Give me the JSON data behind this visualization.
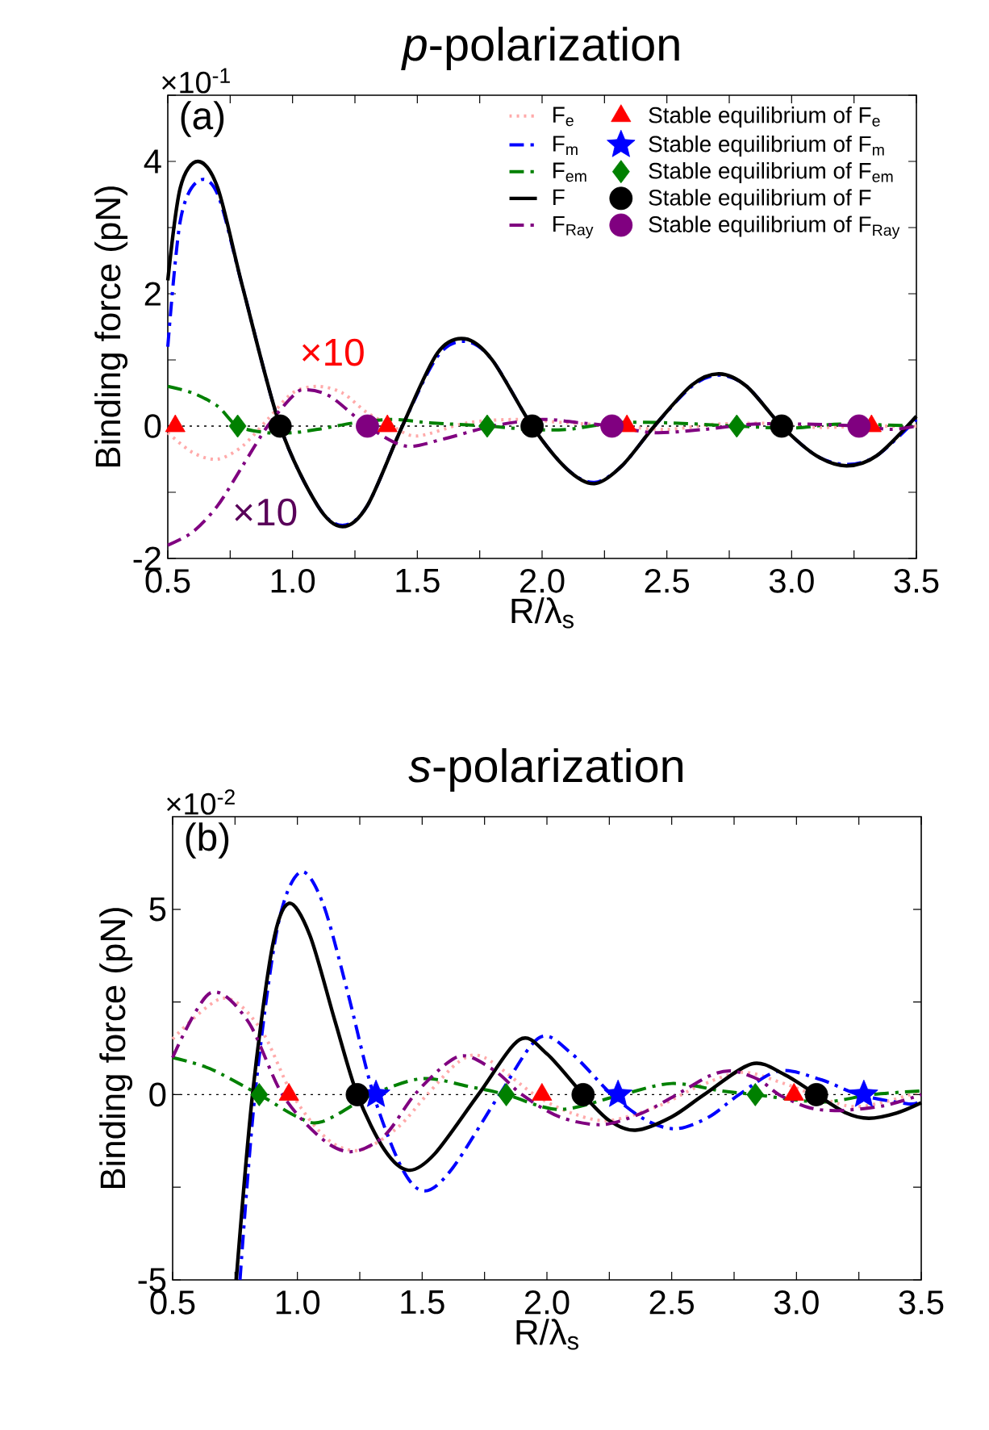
{
  "chart_data": [
    {
      "type": "line",
      "title": "*p*-polarization",
      "xlabel": "R/λ$_{s}$",
      "ylabel": "Binding force (pN)",
      "annotations": [
        "(a)",
        "×10$^{-1}$",
        "×10",
        "×10"
      ],
      "xlim": [
        0.5,
        3.5
      ],
      "ylim": [
        -2,
        5
      ],
      "xticks": [
        0.5,
        {
          "value": 0.75,
          "label": null
        },
        {
          "value": 1,
          "label": "1.0"
        },
        {
          "value": 1.25,
          "label": null
        },
        1.5,
        {
          "value": 1.75,
          "label": null
        },
        {
          "value": 2,
          "label": "2.0"
        },
        {
          "value": 2.25,
          "label": null
        },
        2.5,
        {
          "value": 2.75,
          "label": null
        },
        {
          "value": 3,
          "label": "3.0"
        },
        {
          "value": 3.25,
          "label": null
        },
        3.5
      ],
      "yticks": [
        -2,
        {
          "value": -1,
          "label": null
        },
        0,
        {
          "value": 1,
          "label": null
        },
        2,
        {
          "value": 3,
          "label": null
        },
        4,
        {
          "value": 5,
          "label": null
        }
      ],
      "legend": "top right",
      "ref_lines": [
        {
          "axis": "y",
          "value": 0,
          "color": "#000000",
          "line_style": "dotted"
        }
      ],
      "series": [
        {
          "name": "F$_{e}$",
          "color": "#ffaaaa",
          "line_style": "dotted",
          "x": [
            0.5,
            0.6,
            0.7,
            0.8,
            0.9,
            1.0,
            1.1,
            1.2,
            1.3,
            1.4,
            1.5,
            1.7,
            1.9,
            2.1,
            2.3,
            2.5,
            2.7,
            2.9,
            3.1,
            3.3,
            3.5
          ],
          "values": [
            -0.1,
            -0.4,
            -0.5,
            -0.3,
            0.1,
            0.5,
            0.6,
            0.5,
            0.2,
            0,
            -0.15,
            0.05,
            0.1,
            0.05,
            0,
            -0.05,
            0.03,
            0.04,
            -0.02,
            0,
            0
          ]
        },
        {
          "name": "F$_{m}$",
          "color": "#0000ff",
          "line_style": "dashed",
          "x": [
            0.5,
            0.55,
            0.62,
            0.7,
            0.8,
            0.95,
            1.1,
            1.2,
            1.3,
            1.44,
            1.58,
            1.69,
            1.8,
            1.96,
            2.1,
            2.21,
            2.32,
            2.45,
            2.6,
            2.71,
            2.82,
            2.96,
            3.1,
            3.22,
            3.34,
            3.5
          ],
          "values": [
            1.2,
            3.1,
            3.7,
            3.5,
            2.1,
            0,
            -1.2,
            -1.5,
            -1.2,
            0,
            1.05,
            1.28,
            1.0,
            0,
            -0.65,
            -0.85,
            -0.6,
            0,
            0.6,
            0.77,
            0.6,
            0,
            -0.45,
            -0.58,
            -0.45,
            0.1
          ]
        },
        {
          "name": "F$_{em}$",
          "color": "#008000",
          "line_style": "dashed",
          "x": [
            0.5,
            0.6,
            0.7,
            0.78,
            0.9,
            1.0,
            1.1,
            1.25,
            1.4,
            1.55,
            1.78,
            1.95,
            2.1,
            2.3,
            2.5,
            2.78,
            3.0,
            3.2,
            3.5
          ],
          "values": [
            0.6,
            0.5,
            0.3,
            0,
            -0.1,
            -0.1,
            -0.05,
            0.05,
            0.1,
            0.05,
            0,
            -0.05,
            -0.05,
            0.05,
            0.05,
            0,
            -0.03,
            0.03,
            0
          ]
        },
        {
          "name": "F",
          "color": "#000000",
          "line_style": "solid",
          "x": [
            0.5,
            0.55,
            0.62,
            0.7,
            0.8,
            0.95,
            1.1,
            1.2,
            1.3,
            1.44,
            1.58,
            1.69,
            1.8,
            1.96,
            2.1,
            2.21,
            2.32,
            2.45,
            2.6,
            2.71,
            2.82,
            2.96,
            3.1,
            3.22,
            3.34,
            3.5
          ],
          "values": [
            2.2,
            3.6,
            4.0,
            3.6,
            2.1,
            0,
            -1.2,
            -1.52,
            -1.2,
            0,
            1.1,
            1.32,
            1.0,
            0,
            -0.65,
            -0.87,
            -0.6,
            0,
            0.62,
            0.79,
            0.6,
            0,
            -0.45,
            -0.6,
            -0.45,
            0.15
          ]
        },
        {
          "name": "F$_{Ray}$",
          "color": "#800080",
          "line_style": "dashed",
          "x": [
            0.5,
            0.6,
            0.7,
            0.8,
            0.9,
            1.0,
            1.05,
            1.15,
            1.3,
            1.45,
            1.6,
            1.8,
            2.0,
            2.15,
            2.28,
            2.45,
            2.65,
            2.85,
            3.05,
            3.27,
            3.4,
            3.5
          ],
          "values": [
            -1.8,
            -1.6,
            -1.2,
            -0.6,
            0,
            0.45,
            0.55,
            0.45,
            0,
            -0.3,
            -0.2,
            0,
            0.1,
            0.05,
            0,
            -0.1,
            -0.05,
            0.03,
            0.03,
            0,
            -0.05,
            0
          ]
        },
        {
          "name": "Stable equilibrium of F$_{e}$",
          "type": "scatter",
          "marker": "triangle",
          "color": "#ff0000",
          "x": [
            0.53,
            1.38,
            2.34,
            3.32
          ],
          "values": [
            0,
            0,
            0,
            0
          ]
        },
        {
          "name": "Stable equilibrium of F$_{m}$",
          "type": "scatter",
          "marker": "star",
          "color": "#0000ff"
        },
        {
          "name": "Stable equilibrium of F$_{em}$",
          "type": "scatter",
          "marker": "diamond",
          "color": "#008000",
          "x": [
            0.78,
            1.78,
            2.78
          ],
          "values": [
            0,
            0,
            0
          ]
        },
        {
          "name": "Stable equilibrium of F",
          "type": "scatter",
          "marker": "circle",
          "color": "#000000",
          "x": [
            0.95,
            1.96,
            2.96
          ],
          "values": [
            0,
            0,
            0
          ]
        },
        {
          "name": "Stable equilibrium of F$_{Ray}$",
          "type": "scatter",
          "marker": "circle",
          "color": "#800080",
          "x": [
            1.3,
            2.28,
            3.27
          ],
          "values": [
            0,
            0,
            0
          ]
        }
      ]
    },
    {
      "type": "line",
      "title": "*s*-polarization",
      "xlabel": "R/λ$_{s}$",
      "ylabel": "Binding force (pN)",
      "annotations": [
        "(b)",
        "×10$^{-2}$"
      ],
      "xlim": [
        0.5,
        3.5
      ],
      "ylim": [
        -5,
        7.5
      ],
      "xticks": [
        0.5,
        {
          "value": 0.75,
          "label": null
        },
        {
          "value": 1,
          "label": "1.0"
        },
        {
          "value": 1.25,
          "label": null
        },
        1.5,
        {
          "value": 1.75,
          "label": null
        },
        {
          "value": 2,
          "label": "2.0"
        },
        {
          "value": 2.25,
          "label": null
        },
        2.5,
        {
          "value": 2.75,
          "label": null
        },
        {
          "value": 3,
          "label": "3.0"
        },
        {
          "value": 3.25,
          "label": null
        },
        3.5
      ],
      "yticks": [
        -5,
        {
          "value": -2.5,
          "label": null
        },
        0,
        {
          "value": 2.5,
          "label": null
        },
        5
      ],
      "ref_lines": [
        {
          "axis": "y",
          "value": 0,
          "color": "#000000",
          "line_style": "dotted"
        }
      ],
      "series": [
        {
          "color": "#ffaaaa",
          "line_style": "dotted",
          "x": [
            0.5,
            0.7,
            0.85,
            0.98,
            1.12,
            1.25,
            1.4,
            1.52,
            1.65,
            1.75,
            1.95,
            2.1,
            2.25,
            2.45,
            2.6,
            2.78,
            2.95,
            3.2,
            3.35,
            3.5
          ],
          "values": [
            1.5,
            2.6,
            1.8,
            0,
            -1.2,
            -1.5,
            -0.9,
            0,
            0.9,
            1.0,
            0,
            -0.5,
            -0.7,
            -0.3,
            0.2,
            0.6,
            0.3,
            -0.3,
            -0.2,
            0.1
          ]
        },
        {
          "color": "#0000ff",
          "line_style": "dashed",
          "x": [
            0.77,
            0.83,
            0.92,
            1.01,
            1.1,
            1.2,
            1.305,
            1.42,
            1.51,
            1.62,
            1.81,
            1.97,
            2.1,
            2.26,
            2.4,
            2.52,
            2.65,
            2.77,
            2.93,
            3.1,
            3.25,
            3.45,
            3.5
          ],
          "values": [
            -5,
            0,
            4.5,
            6.0,
            5.2,
            2.8,
            0,
            -2.0,
            -2.6,
            -2.0,
            0,
            1.54,
            1.1,
            0,
            -0.7,
            -0.92,
            -0.6,
            0,
            0.64,
            0.4,
            0,
            -0.25,
            -0.15
          ]
        },
        {
          "color": "#008000",
          "line_style": "dashed",
          "x": [
            0.5,
            0.65,
            0.847,
            1.0,
            1.1,
            1.3,
            1.5,
            1.7,
            1.837,
            2.05,
            2.3,
            2.5,
            2.7,
            2.835,
            3.1,
            3.3,
            3.5
          ],
          "values": [
            1.0,
            0.7,
            0,
            -0.6,
            -0.73,
            0,
            0.43,
            0.2,
            0,
            -0.4,
            0,
            0.3,
            0.1,
            0,
            -0.2,
            0,
            0.1
          ]
        },
        {
          "color": "#000000",
          "line_style": "solid",
          "x": [
            0.755,
            0.82,
            0.9,
            0.966,
            1.05,
            1.15,
            1.24,
            1.35,
            1.445,
            1.55,
            1.725,
            1.89,
            2.0,
            2.145,
            2.25,
            2.355,
            2.5,
            2.63,
            2.82,
            2.95,
            3.08,
            3.2,
            3.29,
            3.4,
            3.5
          ],
          "values": [
            -5,
            0,
            4.0,
            5.16,
            4.3,
            2.0,
            0,
            -1.5,
            -2.04,
            -1.6,
            0,
            1.48,
            1.1,
            0,
            -0.7,
            -0.96,
            -0.6,
            0,
            0.83,
            0.55,
            0,
            -0.5,
            -0.64,
            -0.5,
            -0.22
          ]
        },
        {
          "color": "#800080",
          "line_style": "dashed",
          "x": [
            0.5,
            0.65,
            0.8,
            0.94,
            1.1,
            1.22,
            1.35,
            1.47,
            1.6,
            1.68,
            1.8,
            1.9,
            2.05,
            2.22,
            2.38,
            2.52,
            2.65,
            2.74,
            2.85,
            2.93,
            3.05,
            3.17,
            3.35,
            3.5
          ],
          "values": [
            1.0,
            2.74,
            2.0,
            0,
            -1.2,
            -1.54,
            -1.1,
            0,
            0.85,
            1.04,
            0.6,
            0,
            -0.6,
            -0.81,
            -0.5,
            0,
            0.5,
            0.64,
            0.4,
            0,
            -0.35,
            -0.43,
            -0.3,
            0
          ]
        },
        {
          "type": "scatter",
          "marker": "triangle",
          "color": "#ff0000",
          "x": [
            0.966,
            1.98,
            2.99
          ],
          "values": [
            0,
            0,
            0
          ]
        },
        {
          "type": "scatter",
          "marker": "star",
          "color": "#0000ff",
          "x": [
            1.315,
            2.285,
            3.27
          ],
          "values": [
            0,
            0,
            0
          ]
        },
        {
          "type": "scatter",
          "marker": "diamond",
          "color": "#008000",
          "x": [
            0.847,
            1.837,
            2.835
          ],
          "values": [
            0,
            0,
            0
          ]
        },
        {
          "type": "scatter",
          "marker": "circle",
          "color": "#000000",
          "x": [
            1.24,
            2.145,
            3.08
          ],
          "values": [
            0,
            0,
            0
          ]
        }
      ]
    }
  ]
}
